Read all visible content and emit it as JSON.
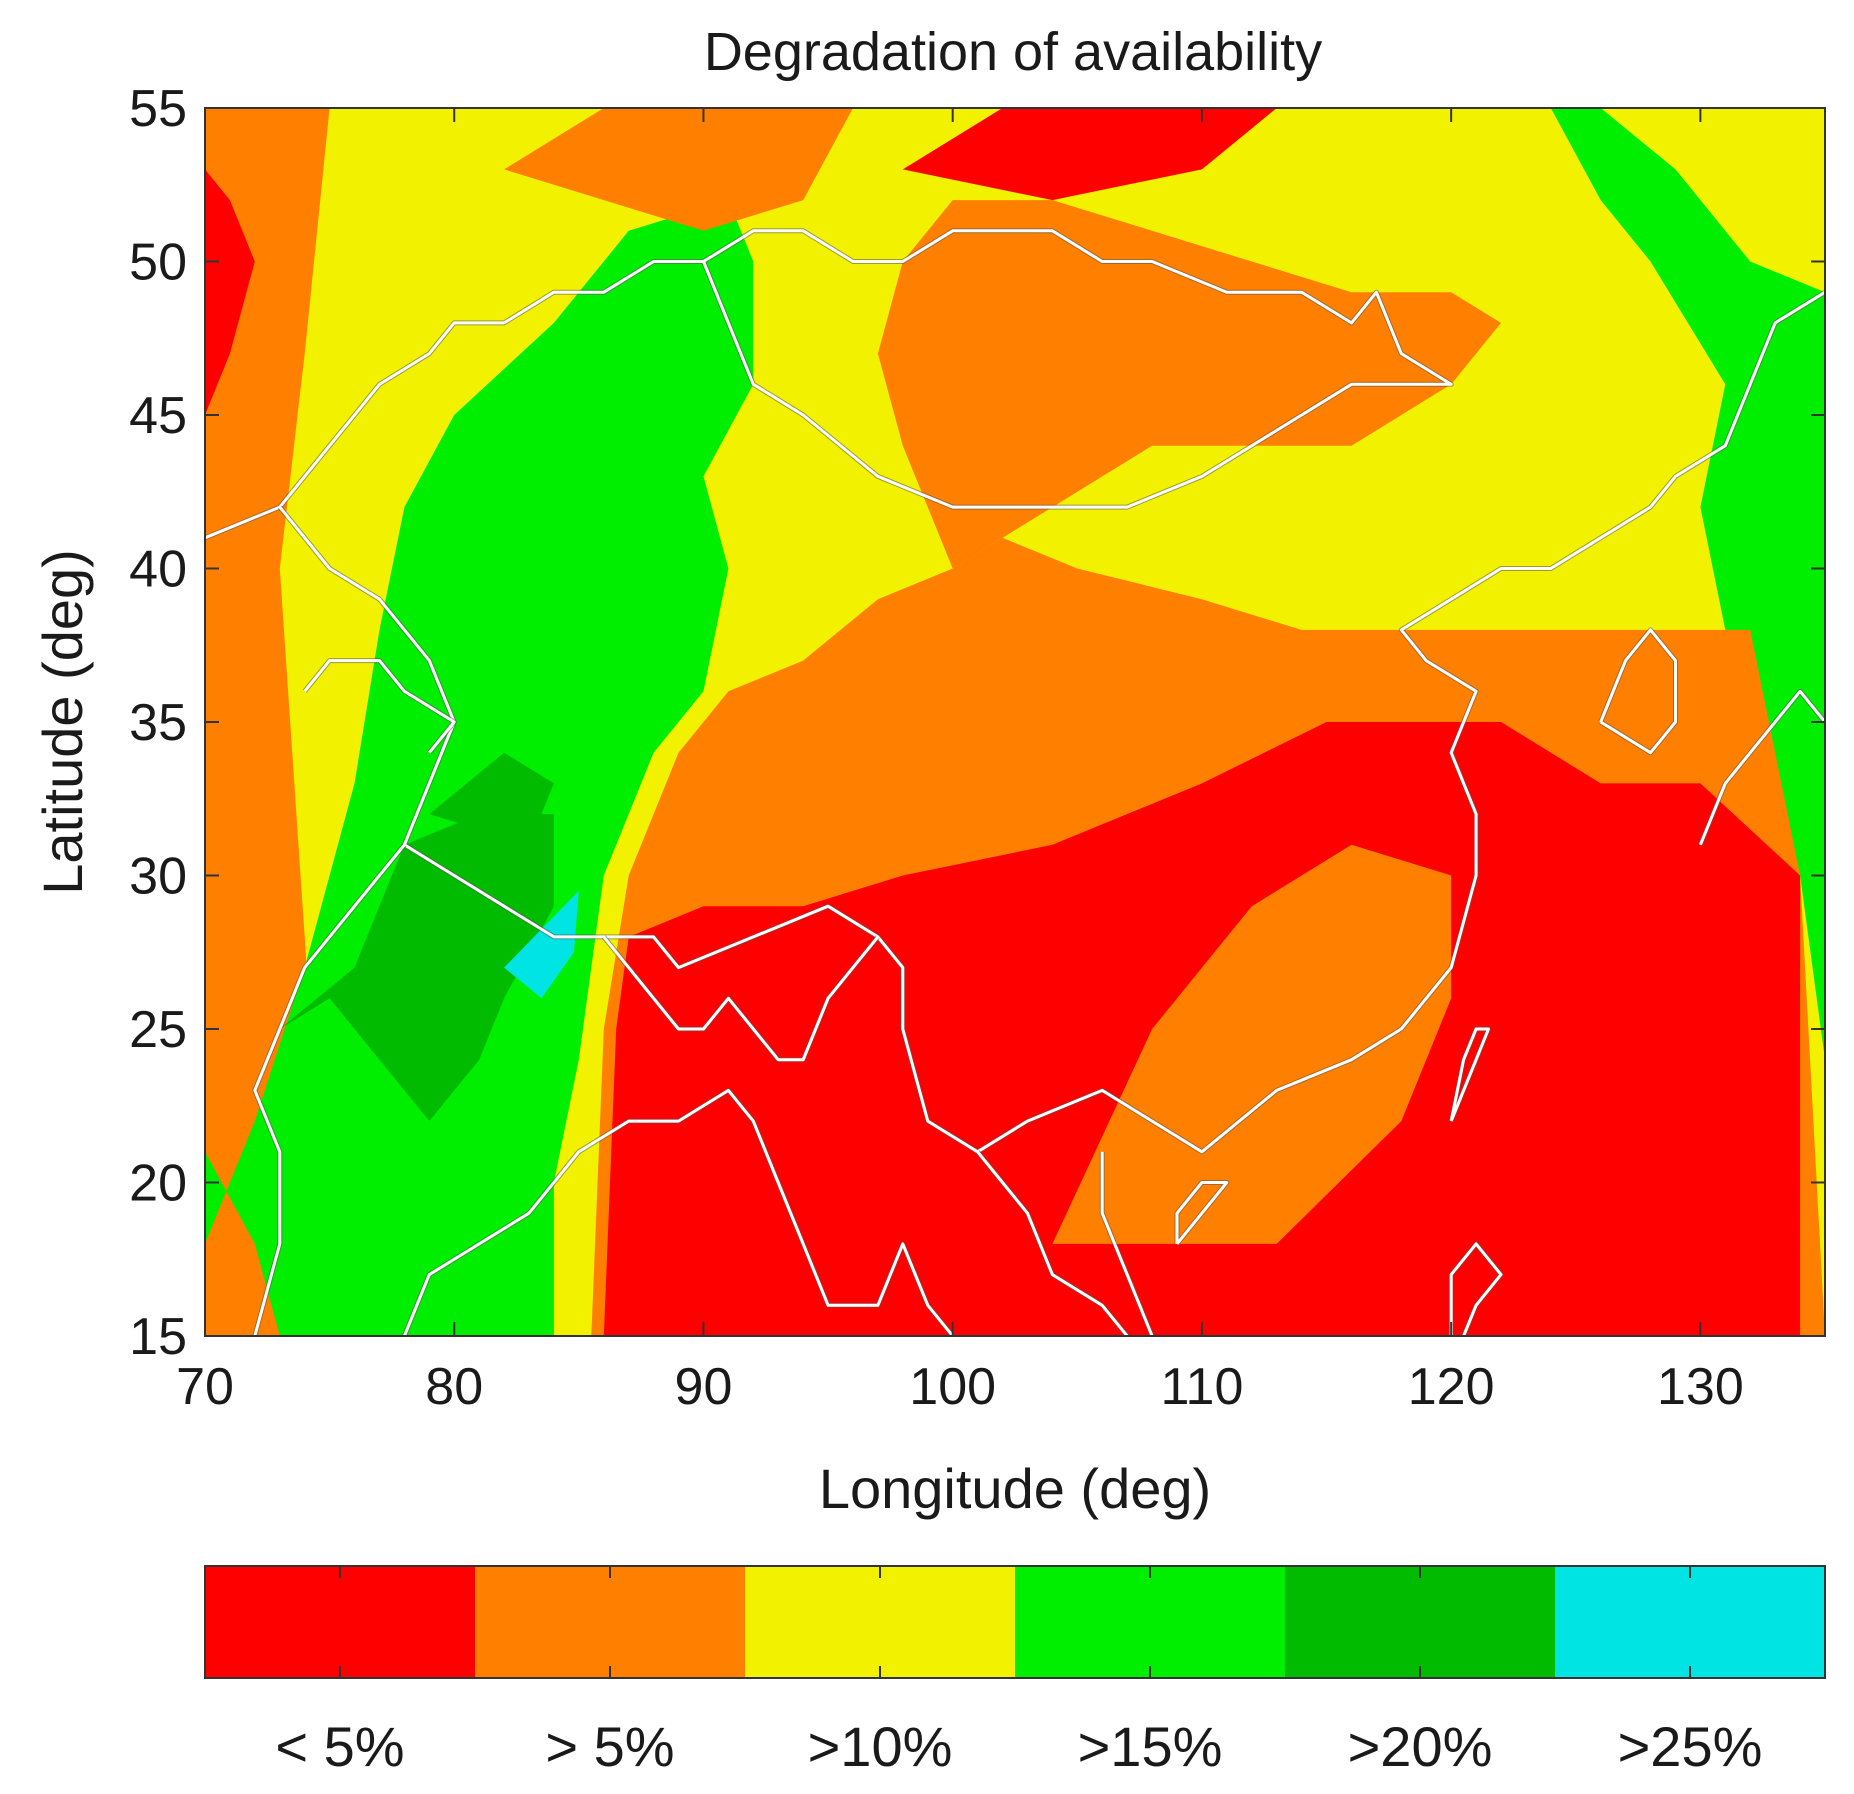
{
  "chart_data": {
    "type": "heatmap",
    "title": "Degradation of availability",
    "xlabel": "Longitude (deg)",
    "ylabel": "Latitude (deg)",
    "xlim": [
      70,
      135
    ],
    "ylim": [
      15,
      55
    ],
    "xticks": [
      70,
      80,
      90,
      100,
      110,
      120,
      130
    ],
    "yticks": [
      15,
      20,
      25,
      30,
      35,
      40,
      45,
      50,
      55
    ],
    "grid": false,
    "legend_position": "bottom",
    "colors": {
      "lt5": "#ff0000",
      "gt5": "#ff8000",
      "gt10": "#f2f200",
      "gt15": "#00ee00",
      "gt20": "#00bb00",
      "gt25": "#00e4e4"
    },
    "categories": [
      {
        "key": "lt5",
        "label": "< 5%"
      },
      {
        "key": "gt5",
        "label": "> 5%"
      },
      {
        "key": "gt10",
        "label": ">10%"
      },
      {
        "key": "gt15",
        "label": ">15%"
      },
      {
        "key": "gt20",
        "label": ">20%"
      },
      {
        "key": "gt25",
        "label": ">25%"
      }
    ],
    "regions": [
      {
        "key": "gt10",
        "polygon": [
          [
            70,
            15
          ],
          [
            135,
            15
          ],
          [
            135,
            55
          ],
          [
            70,
            55
          ]
        ]
      },
      {
        "key": "gt5",
        "polygon": [
          [
            70,
            15
          ],
          [
            75,
            15
          ],
          [
            74,
            28
          ],
          [
            73,
            40
          ],
          [
            74,
            47
          ],
          [
            75,
            55
          ],
          [
            70,
            55
          ]
        ]
      },
      {
        "key": "lt5",
        "polygon": [
          [
            70,
            45
          ],
          [
            71,
            47
          ],
          [
            72,
            50
          ],
          [
            71,
            52
          ],
          [
            70,
            53
          ]
        ]
      },
      {
        "key": "gt15",
        "polygon": [
          [
            70,
            18
          ],
          [
            72,
            22
          ],
          [
            74,
            27
          ],
          [
            76,
            33
          ],
          [
            77,
            38
          ],
          [
            78,
            42
          ],
          [
            80,
            45
          ],
          [
            84,
            48
          ],
          [
            87,
            51
          ],
          [
            91,
            52
          ],
          [
            92,
            50
          ],
          [
            92,
            46
          ],
          [
            90,
            43
          ],
          [
            91,
            40
          ],
          [
            90,
            36
          ],
          [
            88,
            34
          ],
          [
            86,
            30
          ],
          [
            85,
            24
          ],
          [
            84,
            20
          ],
          [
            84,
            15
          ],
          [
            73,
            15
          ],
          [
            72,
            18
          ],
          [
            70,
            21
          ]
        ]
      },
      {
        "key": "gt15",
        "polygon": [
          [
            124,
            55
          ],
          [
            126,
            55
          ],
          [
            129,
            53
          ],
          [
            132,
            50
          ],
          [
            135,
            49
          ],
          [
            135,
            24
          ],
          [
            134,
            30
          ],
          [
            132,
            34
          ],
          [
            131,
            38
          ],
          [
            130,
            42
          ],
          [
            131,
            46
          ],
          [
            128,
            50
          ],
          [
            126,
            52
          ]
        ]
      },
      {
        "key": "gt20",
        "polygon": [
          [
            73,
            25
          ],
          [
            76,
            27
          ],
          [
            78,
            31
          ],
          [
            81,
            32
          ],
          [
            84,
            32
          ],
          [
            84,
            29
          ],
          [
            82,
            26
          ],
          [
            81,
            24
          ],
          [
            79,
            22
          ],
          [
            77,
            24
          ],
          [
            75,
            26
          ]
        ]
      },
      {
        "key": "gt20",
        "polygon": [
          [
            79,
            32
          ],
          [
            82,
            34
          ],
          [
            84,
            33
          ],
          [
            83,
            31
          ]
        ]
      },
      {
        "key": "gt25",
        "polygon": [
          [
            82,
            27
          ],
          [
            83.5,
            26
          ],
          [
            84.8,
            27.5
          ],
          [
            85,
            29.5
          ],
          [
            83.8,
            28.5
          ]
        ]
      },
      {
        "key": "gt5",
        "polygon": [
          [
            85.5,
            15
          ],
          [
            135,
            15
          ],
          [
            134,
            30
          ],
          [
            132,
            38
          ],
          [
            128,
            38
          ],
          [
            122,
            38
          ],
          [
            118,
            38
          ],
          [
            114,
            38
          ],
          [
            110,
            39
          ],
          [
            105,
            40
          ],
          [
            102,
            41
          ],
          [
            100,
            40
          ],
          [
            97,
            39
          ],
          [
            94,
            37
          ],
          [
            91,
            36
          ],
          [
            89,
            34
          ],
          [
            87,
            30
          ],
          [
            86,
            25
          ]
        ]
      },
      {
        "key": "gt5",
        "polygon": [
          [
            100,
            40
          ],
          [
            104,
            42
          ],
          [
            108,
            44
          ],
          [
            112,
            44
          ],
          [
            116,
            44
          ],
          [
            120,
            46
          ],
          [
            122,
            48
          ],
          [
            120,
            49
          ],
          [
            116,
            49
          ],
          [
            112,
            50
          ],
          [
            108,
            51
          ],
          [
            104,
            52
          ],
          [
            100,
            52
          ],
          [
            98,
            50
          ],
          [
            97,
            47
          ],
          [
            98,
            44
          ]
        ]
      },
      {
        "key": "gt5",
        "polygon": [
          [
            82,
            53
          ],
          [
            86,
            55
          ],
          [
            96,
            55
          ],
          [
            94,
            52
          ],
          [
            90,
            51
          ],
          [
            86,
            52
          ]
        ]
      },
      {
        "key": "lt5",
        "polygon": [
          [
            98,
            53
          ],
          [
            102,
            55
          ],
          [
            113,
            55
          ],
          [
            110,
            53
          ],
          [
            104,
            52
          ]
        ]
      },
      {
        "key": "lt5",
        "polygon": [
          [
            86,
            15
          ],
          [
            134,
            15
          ],
          [
            134,
            30
          ],
          [
            130,
            33
          ],
          [
            126,
            33
          ],
          [
            122,
            35
          ],
          [
            115,
            35
          ],
          [
            110,
            33
          ],
          [
            104,
            31
          ],
          [
            98,
            30
          ],
          [
            94,
            29
          ],
          [
            90,
            29
          ],
          [
            87,
            28
          ],
          [
            86.5,
            25
          ]
        ]
      },
      {
        "key": "gt5",
        "polygon": [
          [
            104,
            18
          ],
          [
            113,
            18
          ],
          [
            118,
            22
          ],
          [
            120,
            26
          ],
          [
            120,
            30
          ],
          [
            116,
            31
          ],
          [
            112,
            29
          ],
          [
            108,
            25
          ]
        ]
      }
    ],
    "borders": [
      [
        [
          70,
          41
        ],
        [
          73,
          42
        ],
        [
          75,
          44
        ],
        [
          77,
          46
        ],
        [
          79,
          47
        ],
        [
          80,
          48
        ],
        [
          82,
          48
        ],
        [
          84,
          49
        ],
        [
          86,
          49
        ],
        [
          88,
          50
        ],
        [
          90,
          50
        ],
        [
          92,
          51
        ],
        [
          94,
          51
        ],
        [
          96,
          50
        ],
        [
          98,
          50
        ],
        [
          100,
          51
        ],
        [
          104,
          51
        ],
        [
          106,
          50
        ],
        [
          108,
          50
        ],
        [
          111,
          49
        ],
        [
          114,
          49
        ],
        [
          116,
          48
        ],
        [
          117,
          49
        ],
        [
          118,
          47
        ],
        [
          120,
          46
        ],
        [
          116,
          46
        ],
        [
          112,
          44
        ],
        [
          110,
          43
        ],
        [
          107,
          42
        ],
        [
          104,
          42
        ],
        [
          100,
          42
        ],
        [
          97,
          43
        ],
        [
          94,
          45
        ],
        [
          92,
          46
        ],
        [
          91,
          48
        ],
        [
          90,
          50
        ]
      ],
      [
        [
          73,
          42
        ],
        [
          75,
          40
        ],
        [
          77,
          39
        ],
        [
          79,
          37
        ],
        [
          80,
          35
        ],
        [
          79,
          33
        ],
        [
          78,
          31
        ],
        [
          80,
          30
        ],
        [
          82,
          29
        ],
        [
          84,
          28
        ],
        [
          86,
          28
        ],
        [
          88,
          28
        ],
        [
          89,
          27
        ],
        [
          92,
          28
        ],
        [
          95,
          29
        ],
        [
          97,
          28
        ],
        [
          98,
          27
        ],
        [
          98,
          25
        ],
        [
          99,
          22
        ],
        [
          101,
          21
        ],
        [
          103,
          22
        ],
        [
          106,
          23
        ],
        [
          108,
          22
        ],
        [
          110,
          21
        ],
        [
          113,
          23
        ],
        [
          116,
          24
        ],
        [
          118,
          25
        ],
        [
          120,
          27
        ],
        [
          121,
          30
        ],
        [
          121,
          32
        ],
        [
          120,
          34
        ],
        [
          121,
          36
        ],
        [
          119,
          37
        ],
        [
          118,
          38
        ],
        [
          120,
          39
        ],
        [
          122,
          40
        ],
        [
          124,
          40
        ],
        [
          126,
          41
        ],
        [
          128,
          42
        ],
        [
          129,
          43
        ],
        [
          131,
          44
        ],
        [
          132,
          46
        ],
        [
          133,
          48
        ],
        [
          135,
          49
        ]
      ],
      [
        [
          72,
          15
        ],
        [
          73,
          18
        ],
        [
          73,
          21
        ],
        [
          72,
          23
        ],
        [
          73,
          25
        ],
        [
          74,
          27
        ],
        [
          76,
          29
        ],
        [
          78,
          31
        ]
      ],
      [
        [
          78,
          15
        ],
        [
          79,
          17
        ],
        [
          81,
          18
        ],
        [
          83,
          19
        ],
        [
          85,
          21
        ],
        [
          87,
          22
        ],
        [
          89,
          22
        ],
        [
          91,
          23
        ],
        [
          92,
          22
        ],
        [
          93,
          20
        ],
        [
          94,
          18
        ],
        [
          95,
          16
        ],
        [
          97,
          16
        ],
        [
          98,
          18
        ],
        [
          99,
          16
        ],
        [
          100,
          15
        ]
      ],
      [
        [
          86,
          28
        ],
        [
          87,
          27
        ],
        [
          88,
          26
        ],
        [
          89,
          25
        ],
        [
          90,
          25
        ],
        [
          91,
          26
        ],
        [
          92,
          25
        ],
        [
          93,
          24
        ],
        [
          94,
          24
        ],
        [
          95,
          26
        ],
        [
          96,
          27
        ],
        [
          97,
          28
        ]
      ],
      [
        [
          101,
          21
        ],
        [
          102,
          20
        ],
        [
          103,
          19
        ],
        [
          104,
          17
        ],
        [
          106,
          16
        ],
        [
          107,
          15
        ]
      ],
      [
        [
          108,
          15
        ],
        [
          107,
          17
        ],
        [
          106,
          19
        ],
        [
          106,
          21
        ]
      ],
      [
        [
          109,
          18
        ],
        [
          110,
          19
        ],
        [
          111,
          20
        ],
        [
          110,
          20
        ],
        [
          109,
          19
        ],
        [
          109,
          18
        ]
      ],
      [
        [
          120,
          22
        ],
        [
          121,
          24
        ],
        [
          121.5,
          25
        ],
        [
          121,
          25
        ],
        [
          120.5,
          24
        ],
        [
          120,
          22
        ]
      ],
      [
        [
          120,
          15
        ],
        [
          120,
          17
        ],
        [
          121,
          18
        ],
        [
          122,
          17
        ],
        [
          121,
          16
        ],
        [
          120.5,
          15
        ]
      ],
      [
        [
          126,
          35
        ],
        [
          127,
          37
        ],
        [
          128,
          38
        ],
        [
          129,
          37
        ],
        [
          129,
          35
        ],
        [
          128,
          34
        ],
        [
          126,
          35
        ]
      ],
      [
        [
          130,
          31
        ],
        [
          131,
          33
        ],
        [
          132,
          34
        ],
        [
          133,
          35
        ],
        [
          134,
          36
        ],
        [
          135,
          35
        ]
      ],
      [
        [
          74,
          36
        ],
        [
          75,
          37
        ],
        [
          77,
          37
        ],
        [
          78,
          36
        ],
        [
          80,
          35
        ],
        [
          79,
          34
        ]
      ]
    ]
  }
}
